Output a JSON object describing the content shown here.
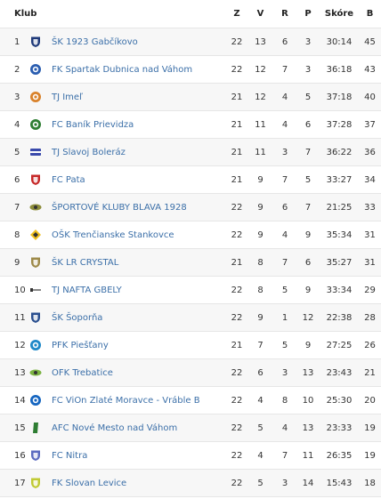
{
  "headers": {
    "club": "Klub",
    "played": "Z",
    "won": "V",
    "drawn": "R",
    "lost": "P",
    "score": "Skóre",
    "points": "B"
  },
  "rows": [
    {
      "pos": "1",
      "club": "ŠK 1923 Gabčíkovo",
      "z": "22",
      "v": "13",
      "r": "6",
      "p": "3",
      "score": "30:14",
      "b": "45",
      "crest_icon": "shield-crest-icon",
      "crest_color": "#1f3a7a"
    },
    {
      "pos": "2",
      "club": "FK Spartak Dubnica nad Váhom",
      "z": "22",
      "v": "12",
      "r": "7",
      "p": "3",
      "score": "36:18",
      "b": "43",
      "crest_icon": "round-crest-icon",
      "crest_color": "#2a5db0"
    },
    {
      "pos": "3",
      "club": "TJ Imeľ",
      "z": "21",
      "v": "12",
      "r": "4",
      "p": "5",
      "score": "37:18",
      "b": "40",
      "crest_icon": "round-crest-icon",
      "crest_color": "#d9822b"
    },
    {
      "pos": "4",
      "club": "FC Baník Prievidza",
      "z": "21",
      "v": "11",
      "r": "4",
      "p": "6",
      "score": "37:28",
      "b": "37",
      "crest_icon": "round-crest-icon",
      "crest_color": "#2e7d32"
    },
    {
      "pos": "5",
      "club": "TJ Slavoj Boleráz",
      "z": "21",
      "v": "11",
      "r": "3",
      "p": "7",
      "score": "36:22",
      "b": "36",
      "crest_icon": "flag-crest-icon",
      "crest_color": "#3949ab"
    },
    {
      "pos": "6",
      "club": "FC Pata",
      "z": "21",
      "v": "9",
      "r": "7",
      "p": "5",
      "score": "33:27",
      "b": "34",
      "crest_icon": "shield-crest-icon",
      "crest_color": "#c62828"
    },
    {
      "pos": "7",
      "club": "ŠPORTOVÉ KLUBY BLAVA 1928",
      "z": "22",
      "v": "9",
      "r": "6",
      "p": "7",
      "score": "21:25",
      "b": "33",
      "crest_icon": "wing-crest-icon",
      "crest_color": "#8d8d3a"
    },
    {
      "pos": "8",
      "club": "OŠK Trenčianske Stankovce",
      "z": "22",
      "v": "9",
      "r": "4",
      "p": "9",
      "score": "35:34",
      "b": "31",
      "crest_icon": "diamond-crest-icon",
      "crest_color": "#f0c020"
    },
    {
      "pos": "9",
      "club": "ŠK LR CRYSTAL",
      "z": "21",
      "v": "8",
      "r": "7",
      "p": "6",
      "score": "35:27",
      "b": "31",
      "crest_icon": "shield-crest-icon",
      "crest_color": "#9e8a4a"
    },
    {
      "pos": "10",
      "club": "TJ NAFTA GBELY",
      "z": "22",
      "v": "8",
      "r": "5",
      "p": "9",
      "score": "33:34",
      "b": "29",
      "crest_icon": "dash-crest-icon",
      "crest_color": "#888888"
    },
    {
      "pos": "11",
      "club": "ŠK Šoporňa",
      "z": "22",
      "v": "9",
      "r": "1",
      "p": "12",
      "score": "22:38",
      "b": "28",
      "crest_icon": "shield-crest-icon",
      "crest_color": "#2a4f8f"
    },
    {
      "pos": "12",
      "club": "PFK Piešťany",
      "z": "21",
      "v": "7",
      "r": "5",
      "p": "9",
      "score": "27:25",
      "b": "26",
      "crest_icon": "round-crest-icon",
      "crest_color": "#1e88c8"
    },
    {
      "pos": "13",
      "club": "OFK Trebatice",
      "z": "22",
      "v": "6",
      "r": "3",
      "p": "13",
      "score": "23:43",
      "b": "21",
      "crest_icon": "wing-crest-icon",
      "crest_color": "#7cb342"
    },
    {
      "pos": "14",
      "club": "FC ViOn Zlaté Moravce - Vráble B",
      "z": "22",
      "v": "4",
      "r": "8",
      "p": "10",
      "score": "25:30",
      "b": "20",
      "crest_icon": "round-crest-icon",
      "crest_color": "#1565c0"
    },
    {
      "pos": "15",
      "club": "AFC Nové Mesto nad Váhom",
      "z": "22",
      "v": "5",
      "r": "4",
      "p": "13",
      "score": "23:33",
      "b": "19",
      "crest_icon": "slash-crest-icon",
      "crest_color": "#2e7d32"
    },
    {
      "pos": "16",
      "club": "FC Nitra",
      "z": "22",
      "v": "4",
      "r": "7",
      "p": "11",
      "score": "26:35",
      "b": "19",
      "crest_icon": "shield-crest-icon",
      "crest_color": "#5c6bc0"
    },
    {
      "pos": "17",
      "club": "FK Slovan Levice",
      "z": "22",
      "v": "5",
      "r": "3",
      "p": "14",
      "score": "15:43",
      "b": "18",
      "crest_icon": "shield-crest-icon",
      "crest_color": "#c0ca33"
    }
  ]
}
